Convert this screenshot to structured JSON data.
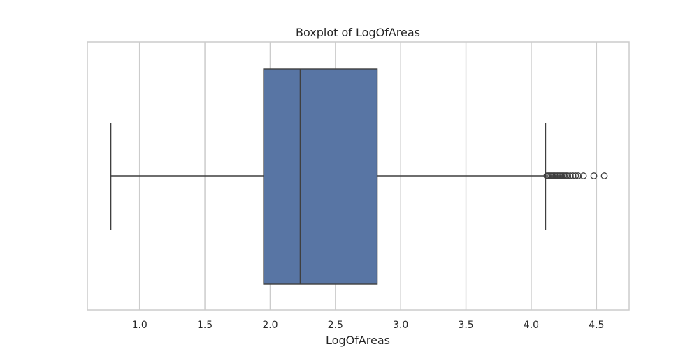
{
  "chart_data": {
    "type": "boxplot",
    "orientation": "horizontal",
    "title": "Boxplot of LogOfAreas",
    "xlabel": "LogOfAreas",
    "ylabel": "",
    "xlim": [
      0.6,
      4.75
    ],
    "xticks": [
      1.0,
      1.5,
      2.0,
      2.5,
      3.0,
      3.5,
      4.0,
      4.5
    ],
    "xtick_labels": [
      "1.0",
      "1.5",
      "2.0",
      "2.5",
      "3.0",
      "3.5",
      "4.0",
      "4.5"
    ],
    "grid": "vertical",
    "box": {
      "whisker_low": 0.78,
      "q1": 1.95,
      "median": 2.23,
      "q3": 2.82,
      "whisker_high": 4.11
    },
    "outliers": [
      4.12,
      4.13,
      4.14,
      4.15,
      4.16,
      4.17,
      4.18,
      4.19,
      4.2,
      4.21,
      4.22,
      4.23,
      4.24,
      4.25,
      4.26,
      4.27,
      4.28,
      4.3,
      4.32,
      4.34,
      4.36,
      4.4,
      4.48,
      4.56
    ],
    "colors": {
      "box": "#5875a4",
      "line": "#3f3f3f",
      "grid": "#cccccc",
      "frame": "#cccccc"
    }
  }
}
